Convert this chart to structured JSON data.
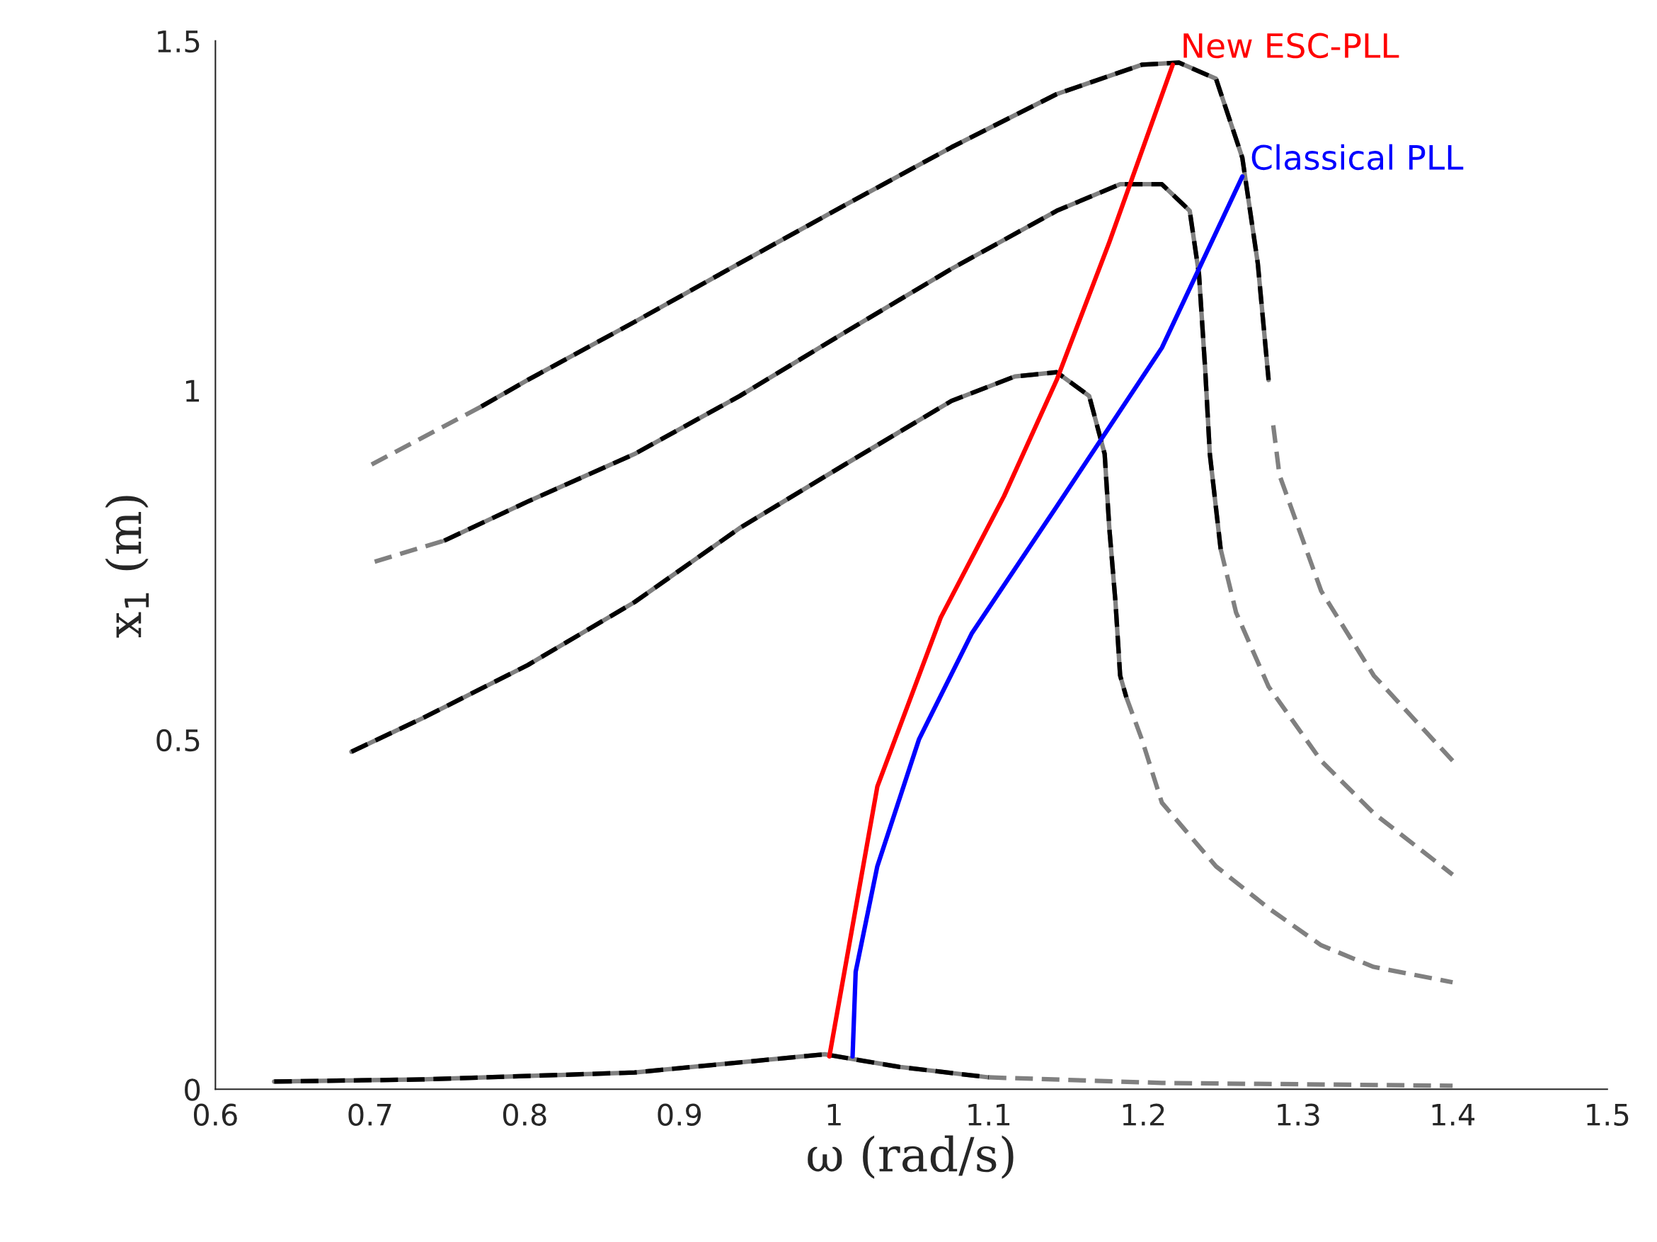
{
  "chart_data": {
    "type": "line",
    "xlabel": "ω (rad/s)",
    "ylabel": "x$_{1}$ (m)",
    "xlim": [
      0.6,
      1.5
    ],
    "xticks": [
      0.6,
      0.7,
      0.8,
      0.9,
      1,
      1.1,
      1.2,
      1.3,
      1.4,
      1.5
    ],
    "ylim": [
      0,
      1.5
    ],
    "yticks": [
      0,
      0.5,
      1,
      1.5
    ],
    "grid": false,
    "legend": false,
    "marker": "none",
    "series": [
      {
        "color": "#808080",
        "line_style": "dashed",
        "x": [
          1.1,
          1.212,
          1.4
        ],
        "values": [
          0.017,
          0.009,
          0.005
        ]
      },
      {
        "color": "#808080",
        "line_style": "solid",
        "x": [
          0.638,
          0.734,
          0.871,
          0.994,
          1.042,
          1.1
        ],
        "values": [
          0.011,
          0.014,
          0.024,
          0.05,
          0.032,
          0.017
        ]
      },
      {
        "color": "#000000",
        "line_style": "dashed",
        "x": [
          0.638,
          0.734,
          0.871,
          0.994,
          1.042,
          1.1
        ],
        "values": [
          0.011,
          0.014,
          0.024,
          0.05,
          0.032,
          0.017
        ]
      },
      {
        "color": "#808080",
        "line_style": "dashed",
        "x": [
          1.189,
          1.199,
          1.212,
          1.247,
          1.281,
          1.315,
          1.349,
          1.4
        ],
        "values": [
          0.561,
          0.501,
          0.41,
          0.319,
          0.259,
          0.206,
          0.175,
          0.153
        ]
      },
      {
        "color": "#808080",
        "line_style": "solid",
        "x": [
          0.688,
          0.734,
          0.802,
          0.871,
          0.939,
          1.007,
          1.076,
          1.117,
          1.144,
          1.165,
          1.175,
          1.178,
          1.182,
          1.185,
          1.189
        ],
        "values": [
          0.483,
          0.531,
          0.607,
          0.697,
          0.803,
          0.894,
          0.985,
          1.02,
          1.026,
          0.992,
          0.909,
          0.803,
          0.697,
          0.592,
          0.561
        ]
      },
      {
        "color": "#000000",
        "line_style": "dashed",
        "x": [
          0.688,
          0.734,
          0.802,
          0.871,
          0.939,
          1.007,
          1.076,
          1.117,
          1.144,
          1.165,
          1.175,
          1.178,
          1.182,
          1.185,
          1.189
        ],
        "values": [
          0.483,
          0.531,
          0.607,
          0.697,
          0.803,
          0.894,
          0.985,
          1.02,
          1.026,
          0.992,
          0.909,
          0.803,
          0.697,
          0.592,
          0.561
        ]
      },
      {
        "color": "#808080",
        "line_style": "dashed",
        "x": [
          0.703,
          0.748
        ],
        "values": [
          0.755,
          0.785
        ]
      },
      {
        "color": "#808080",
        "line_style": "dashed",
        "x": [
          1.25,
          1.26,
          1.281,
          1.315,
          1.349,
          1.4
        ],
        "values": [
          0.773,
          0.682,
          0.576,
          0.47,
          0.395,
          0.307
        ]
      },
      {
        "color": "#808080",
        "line_style": "solid",
        "x": [
          0.748,
          0.802,
          0.871,
          0.939,
          1.007,
          1.076,
          1.144,
          1.185,
          1.212,
          1.23,
          1.236,
          1.24,
          1.243,
          1.25
        ],
        "values": [
          0.785,
          0.841,
          0.909,
          0.992,
          1.083,
          1.174,
          1.257,
          1.295,
          1.295,
          1.257,
          1.166,
          1.03,
          0.909,
          0.773
        ]
      },
      {
        "color": "#000000",
        "line_style": "dashed",
        "x": [
          0.748,
          0.802,
          0.871,
          0.939,
          1.007,
          1.076,
          1.144,
          1.185,
          1.212,
          1.23,
          1.236,
          1.24,
          1.243,
          1.25
        ],
        "values": [
          0.785,
          0.841,
          0.909,
          0.992,
          1.083,
          1.174,
          1.257,
          1.295,
          1.295,
          1.257,
          1.166,
          1.03,
          0.909,
          0.773
        ]
      },
      {
        "color": "#808080",
        "line_style": "dashed",
        "x": [
          0.701,
          0.772
        ],
        "values": [
          0.894,
          0.977
        ]
      },
      {
        "color": "#808080",
        "line_style": "dashed",
        "x": [
          1.284,
          1.288,
          1.315,
          1.349,
          1.4
        ],
        "values": [
          0.95,
          0.879,
          0.713,
          0.592,
          0.47
        ]
      },
      {
        "color": "#808080",
        "line_style": "solid",
        "x": [
          0.772,
          0.802,
          0.871,
          0.939,
          1.007,
          1.076,
          1.144,
          1.199,
          1.223,
          1.247,
          1.264,
          1.274,
          1.281
        ],
        "values": [
          0.977,
          1.015,
          1.098,
          1.182,
          1.265,
          1.348,
          1.424,
          1.466,
          1.469,
          1.446,
          1.333,
          1.182,
          1.015
        ]
      },
      {
        "color": "#000000",
        "line_style": "dashed",
        "x": [
          0.772,
          0.802,
          0.871,
          0.939,
          1.007,
          1.076,
          1.144,
          1.199,
          1.223,
          1.247,
          1.264,
          1.274,
          1.281
        ],
        "values": [
          0.977,
          1.015,
          1.098,
          1.182,
          1.265,
          1.348,
          1.424,
          1.466,
          1.469,
          1.446,
          1.333,
          1.182,
          1.015
        ]
      },
      {
        "name": "New ESC-PLL",
        "color": "#ff0000",
        "line_style": "solid",
        "x": [
          0.997,
          1.028,
          1.069,
          1.11,
          1.144,
          1.178,
          1.219
        ],
        "values": [
          0.047,
          0.433,
          0.675,
          0.849,
          1.015,
          1.212,
          1.466
        ]
      },
      {
        "name": "Classical PLL",
        "color": "#0000ff",
        "line_style": "solid",
        "x": [
          1.012,
          1.014,
          1.028,
          1.055,
          1.089,
          1.144,
          1.212,
          1.264
        ],
        "values": [
          0.047,
          0.168,
          0.319,
          0.501,
          0.652,
          0.834,
          1.061,
          1.306
        ]
      }
    ]
  }
}
